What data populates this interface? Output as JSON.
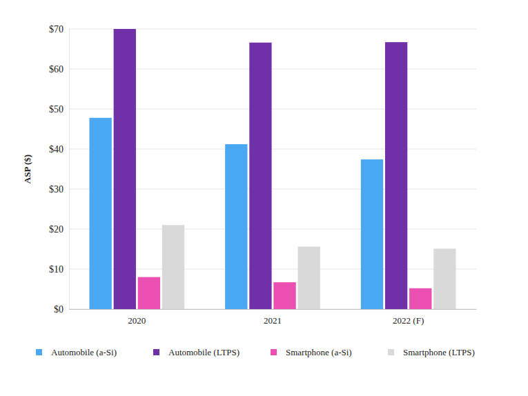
{
  "chart_data": {
    "type": "bar",
    "y_label": "ASP ($)",
    "categories": [
      "2020",
      "2021",
      "2022 (F)"
    ],
    "series": [
      {
        "name": "Automobile (a-Si)",
        "color": "#4aa8f2",
        "values": [
          47.8,
          41.2,
          37.4
        ]
      },
      {
        "name": "Automobile (LTPS)",
        "color": "#7030a8",
        "values": [
          70,
          66.6,
          66.7
        ]
      },
      {
        "name": "Smartphone (a-Si)",
        "color": "#ec4fb2",
        "values": [
          8,
          6.7,
          5.2
        ]
      },
      {
        "name": "Smartphone (LTPS)",
        "color": "#d9d9d9",
        "values": [
          21,
          15.6,
          15.1
        ]
      }
    ],
    "ylim": [
      0,
      70
    ],
    "yticks": [
      {
        "value": 0,
        "label": "$0"
      },
      {
        "value": 10,
        "label": "$10"
      },
      {
        "value": 20,
        "label": "$20"
      },
      {
        "value": 30,
        "label": "$30"
      },
      {
        "value": 40,
        "label": "$40"
      },
      {
        "value": 50,
        "label": "$50"
      },
      {
        "value": 60,
        "label": "$60"
      },
      {
        "value": 70,
        "label": "$70"
      }
    ],
    "grid": true,
    "legend": "bottom"
  }
}
